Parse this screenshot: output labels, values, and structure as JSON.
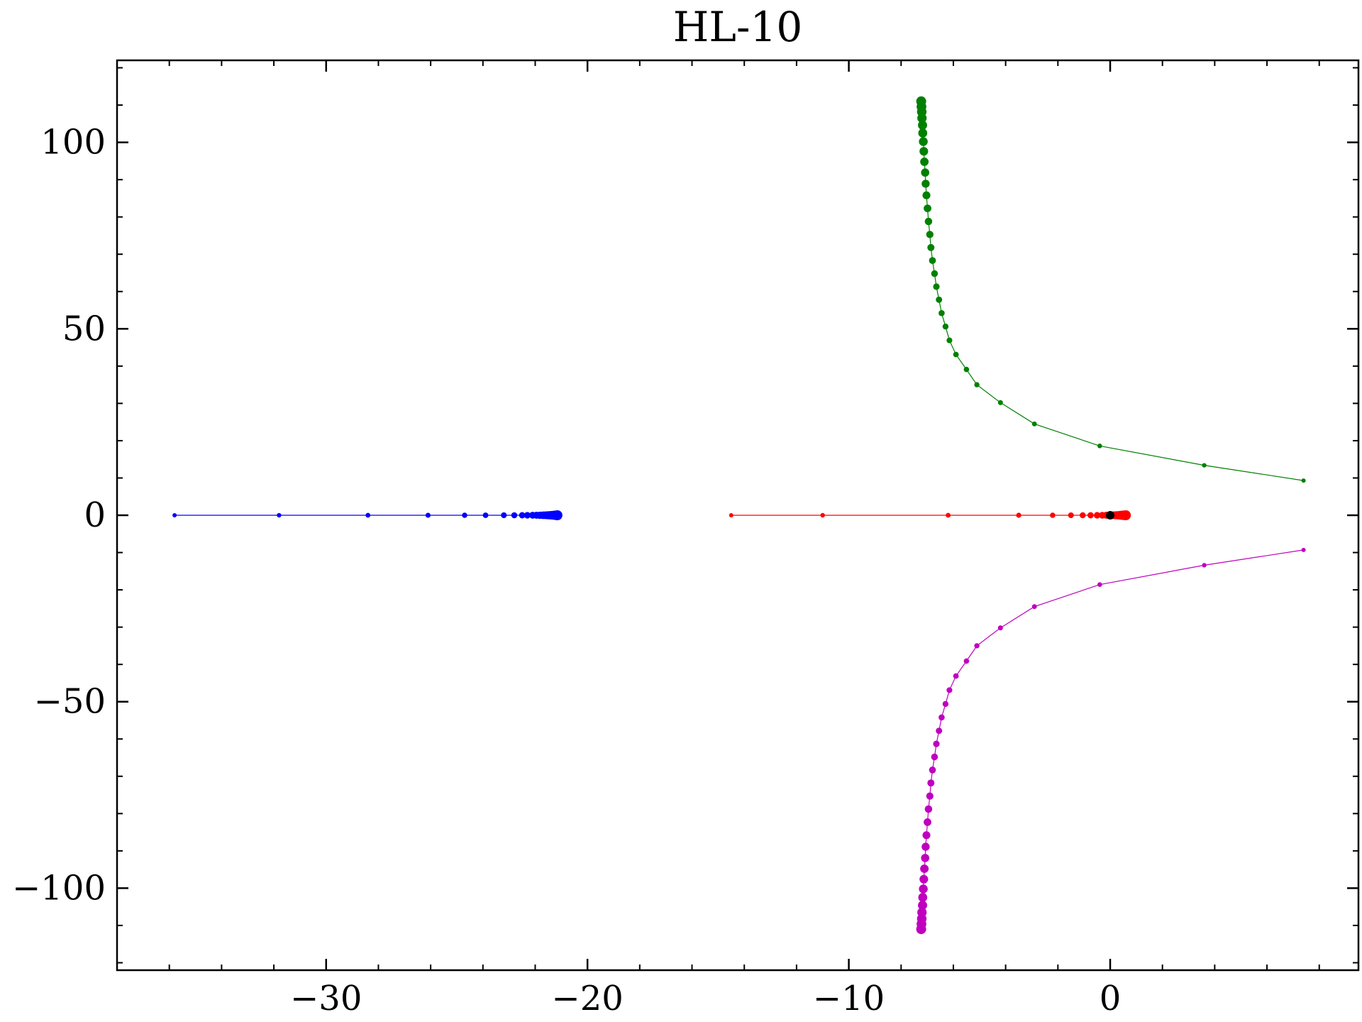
{
  "chart_data": {
    "type": "scatter",
    "title": "HL-10",
    "xlabel": "",
    "ylabel": "",
    "xlim": [
      -38,
      9.5
    ],
    "ylim": [
      -122,
      122
    ],
    "x_ticks": [
      -30,
      -20,
      -10,
      0
    ],
    "x_tick_labels": [
      "−30",
      "−20",
      "−10",
      "0"
    ],
    "y_ticks": [
      -100,
      -50,
      0,
      50,
      100
    ],
    "y_tick_labels": [
      "−100",
      "−50",
      "0",
      "50",
      "100"
    ],
    "x_minor_step": 2,
    "y_minor_step": 10,
    "grid": false,
    "legend": null,
    "series": [
      {
        "color": "#0000ff",
        "x": [
          -35.8,
          -31.8,
          -28.4,
          -26.1,
          -24.7,
          -23.9,
          -23.2,
          -22.8,
          -22.5,
          -22.3,
          -22.1,
          -21.95,
          -21.82,
          -21.7,
          -21.6,
          -21.5,
          -21.42,
          -21.35,
          -21.3,
          -21.25,
          -21.2,
          -21.17,
          -21.15
        ],
        "y": [
          0,
          0,
          0,
          0,
          0,
          0,
          0,
          0,
          0,
          0,
          0,
          0,
          0,
          0,
          0,
          0,
          0,
          0,
          0,
          0,
          0,
          0,
          0
        ]
      },
      {
        "color": "#ff0000",
        "x": [
          -14.5,
          -11.0,
          -6.2,
          -3.5,
          -2.2,
          -1.5,
          -1.05,
          -0.75,
          -0.5,
          -0.3,
          -0.15,
          0.0,
          0.1,
          0.2,
          0.28,
          0.35,
          0.4,
          0.45,
          0.5,
          0.55,
          0.6
        ],
        "y": [
          0,
          0,
          0,
          0,
          0,
          0,
          0,
          0,
          0,
          0,
          0,
          0,
          0,
          0,
          0,
          0,
          0,
          0,
          0,
          0,
          0
        ]
      },
      {
        "color": "#008000",
        "x": [
          7.4,
          3.6,
          -0.4,
          -2.9,
          -4.2,
          -5.1,
          -5.5,
          -5.9,
          -6.15,
          -6.3,
          -6.45,
          -6.55,
          -6.65,
          -6.72,
          -6.8,
          -6.86,
          -6.9,
          -6.95,
          -6.99,
          -7.03,
          -7.06,
          -7.08,
          -7.11,
          -7.13,
          -7.15,
          -7.17,
          -7.18,
          -7.2,
          -7.21,
          -7.22,
          -7.23
        ],
        "y": [
          9.3,
          13.4,
          18.6,
          24.5,
          30.2,
          35.0,
          39.1,
          43.1,
          46.9,
          50.6,
          54.2,
          57.8,
          61.3,
          64.8,
          68.3,
          71.8,
          75.3,
          78.8,
          82.3,
          85.8,
          88.9,
          91.9,
          94.8,
          97.6,
          100.2,
          102.5,
          104.6,
          106.5,
          108.2,
          109.6,
          111.0
        ]
      },
      {
        "color": "#bf00bf",
        "x": [
          7.4,
          3.6,
          -0.4,
          -2.9,
          -4.2,
          -5.1,
          -5.5,
          -5.9,
          -6.15,
          -6.3,
          -6.45,
          -6.55,
          -6.65,
          -6.72,
          -6.8,
          -6.86,
          -6.9,
          -6.95,
          -6.99,
          -7.03,
          -7.06,
          -7.08,
          -7.11,
          -7.13,
          -7.15,
          -7.17,
          -7.18,
          -7.2,
          -7.21,
          -7.22,
          -7.23
        ],
        "y": [
          -9.3,
          -13.4,
          -18.6,
          -24.5,
          -30.2,
          -35.0,
          -39.1,
          -43.1,
          -46.9,
          -50.6,
          -54.2,
          -57.8,
          -61.3,
          -64.8,
          -68.3,
          -71.8,
          -75.3,
          -78.8,
          -82.3,
          -85.8,
          -88.9,
          -91.9,
          -94.8,
          -97.6,
          -100.2,
          -102.5,
          -104.6,
          -106.5,
          -108.2,
          -109.6,
          -111.0
        ]
      },
      {
        "color": "#000000",
        "x": [
          0.0
        ],
        "y": [
          0.0
        ]
      }
    ]
  }
}
